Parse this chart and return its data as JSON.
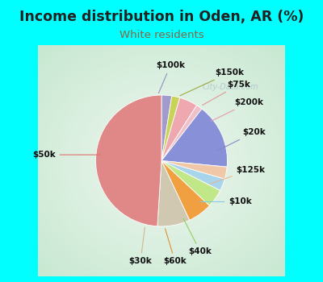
{
  "title": "Income distribution in Oden, AR (%)",
  "subtitle": "White residents",
  "outer_bg": "#00FFFF",
  "chart_bg_outer": "#c8e8d0",
  "chart_bg_inner": "#f0f8f0",
  "labels": [
    "$100k",
    "$150k",
    "$75k",
    "$200k",
    "$20k",
    "$125k",
    "$10k",
    "$40k",
    "$60k",
    "$30k",
    "$50k"
  ],
  "sizes": [
    2.5,
    2.0,
    4.5,
    1.5,
    16.0,
    3.0,
    3.0,
    4.5,
    6.0,
    8.0,
    49.0
  ],
  "colors": [
    "#a09acd",
    "#c8d458",
    "#f0a8b0",
    "#f0c0c8",
    "#8890d8",
    "#f0c8a8",
    "#a8d4ec",
    "#c0e888",
    "#f0a040",
    "#d0c8b0",
    "#e08888"
  ],
  "title_color": "#222222",
  "subtitle_color": "#886644",
  "label_color": "#111111",
  "watermark_color": "#b0c8d0",
  "label_fontsize": 7.5,
  "title_fontsize": 12.5,
  "subtitle_fontsize": 9.5
}
